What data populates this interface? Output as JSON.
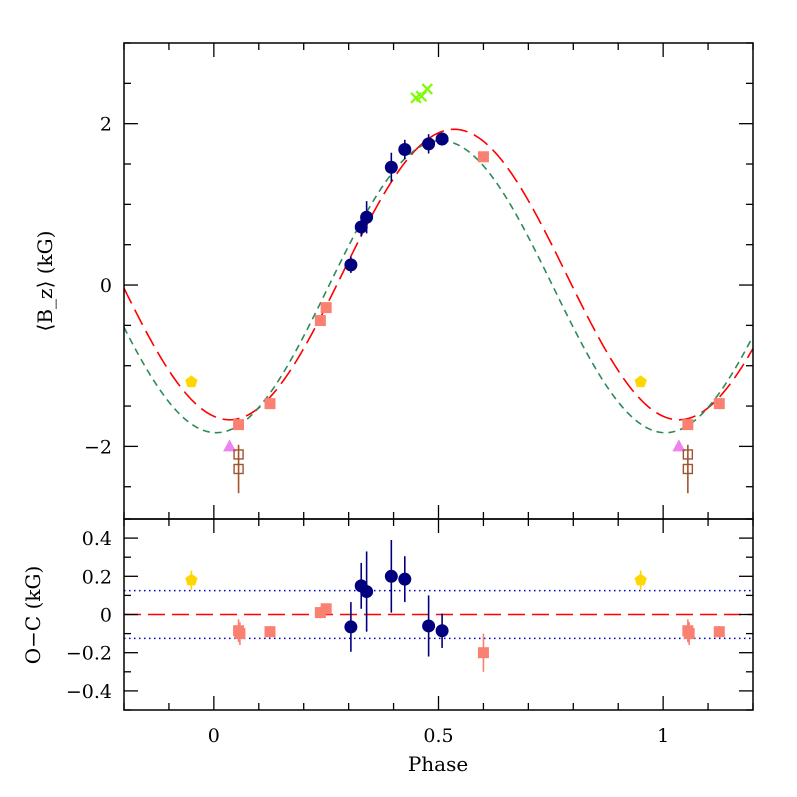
{
  "chart_data": [
    {
      "type": "scatter",
      "panel": "top",
      "ylabel": "⟨B_z⟩ (kG)",
      "xlim": [
        -0.2,
        1.2
      ],
      "ylim": [
        -2.9,
        3.0
      ],
      "x_ticks": [
        0,
        0.5,
        1
      ],
      "x_tick_labels": [
        "",
        "",
        ""
      ],
      "y_ticks": [
        -2,
        0,
        2
      ],
      "y_tick_labels": [
        "−2",
        "0",
        "2"
      ],
      "grid": false,
      "curves": [
        {
          "style": "long-dash",
          "color": "#ff0000",
          "mean": 0.13,
          "amplitude": 1.8,
          "phase_of_max": 0.535
        },
        {
          "style": "short-dash",
          "color": "#2e8b57",
          "mean": -0.02,
          "amplitude": 1.81,
          "phase_of_max": 0.505
        }
      ],
      "series": [
        {
          "marker": "circle",
          "color": "#00007f",
          "points": [
            [
              0.305,
              0.25,
              0.1
            ],
            [
              0.328,
              0.72,
              0.12
            ],
            [
              0.34,
              0.84,
              0.2
            ],
            [
              0.395,
              1.46,
              0.18
            ],
            [
              0.425,
              1.68,
              0.12
            ],
            [
              0.478,
              1.75,
              0.12
            ],
            [
              0.508,
              1.81,
              0.08
            ]
          ]
        },
        {
          "marker": "filled-square",
          "color": "#fa8072",
          "points": [
            [
              0.055,
              -1.73,
              0
            ],
            [
              0.125,
              -1.47,
              0
            ],
            [
              0.237,
              -0.44,
              0
            ],
            [
              0.25,
              -0.28,
              0
            ],
            [
              0.6,
              1.59,
              0
            ],
            [
              1.055,
              -1.73,
              0
            ],
            [
              1.125,
              -1.47,
              0
            ]
          ]
        },
        {
          "marker": "pentagon",
          "color": "#ffd700",
          "points": [
            [
              -0.05,
              -1.2,
              0
            ],
            [
              0.95,
              -1.2,
              0
            ]
          ]
        },
        {
          "marker": "triangle",
          "color": "#ee82ee",
          "points": [
            [
              0.035,
              -2.0,
              0
            ],
            [
              1.035,
              -2.0,
              0
            ]
          ]
        },
        {
          "marker": "open-square",
          "color": "#a0522d",
          "points": [
            [
              0.055,
              -2.1,
              0
            ],
            [
              0.055,
              -2.28,
              0.3
            ],
            [
              1.055,
              -2.1,
              0
            ],
            [
              1.055,
              -2.28,
              0.3
            ]
          ]
        },
        {
          "marker": "cross",
          "color": "#7cfc00",
          "points": [
            [
              0.45,
              2.32,
              0
            ],
            [
              0.462,
              2.34,
              0
            ],
            [
              0.475,
              2.43,
              0
            ]
          ]
        }
      ]
    },
    {
      "type": "scatter",
      "panel": "bottom",
      "xlabel": "Phase",
      "ylabel": "O−C (kG)",
      "xlim": [
        -0.2,
        1.2
      ],
      "ylim": [
        -0.5,
        0.5
      ],
      "x_ticks": [
        0,
        0.5,
        1
      ],
      "x_tick_labels": [
        "0",
        "0.5",
        "1"
      ],
      "y_ticks": [
        -0.4,
        -0.2,
        0,
        0.2,
        0.4
      ],
      "y_tick_labels": [
        "−0.4",
        "−0.2",
        "0",
        "0.2",
        "0.4"
      ],
      "grid": false,
      "reference_lines": [
        {
          "y": 0,
          "style": "long-dash",
          "color": "#ff0000"
        },
        {
          "y": 0.125,
          "style": "dotted",
          "color": "#0000cc"
        },
        {
          "y": -0.125,
          "style": "dotted",
          "color": "#0000cc"
        }
      ],
      "series": [
        {
          "marker": "circle",
          "color": "#00007f",
          "points": [
            [
              0.305,
              -0.065,
              0.13
            ],
            [
              0.328,
              0.15,
              0.12
            ],
            [
              0.34,
              0.12,
              0.21
            ],
            [
              0.395,
              0.2,
              0.19
            ],
            [
              0.425,
              0.185,
              0.12
            ],
            [
              0.478,
              -0.06,
              0.16
            ],
            [
              0.508,
              -0.085,
              0.09
            ]
          ]
        },
        {
          "marker": "filled-square",
          "color": "#fa8072",
          "points": [
            [
              0.055,
              -0.085,
              0.06
            ],
            [
              0.058,
              -0.1,
              0.06
            ],
            [
              0.125,
              -0.09,
              0.03
            ],
            [
              0.237,
              0.01,
              0.03
            ],
            [
              0.25,
              0.03,
              0.02
            ],
            [
              0.6,
              -0.2,
              0.1
            ],
            [
              1.055,
              -0.085,
              0.06
            ],
            [
              1.058,
              -0.1,
              0.06
            ],
            [
              1.125,
              -0.09,
              0.03
            ]
          ]
        },
        {
          "marker": "pentagon",
          "color": "#ffd700",
          "points": [
            [
              -0.05,
              0.18,
              0.05
            ],
            [
              0.95,
              0.18,
              0.05
            ]
          ]
        }
      ]
    }
  ]
}
